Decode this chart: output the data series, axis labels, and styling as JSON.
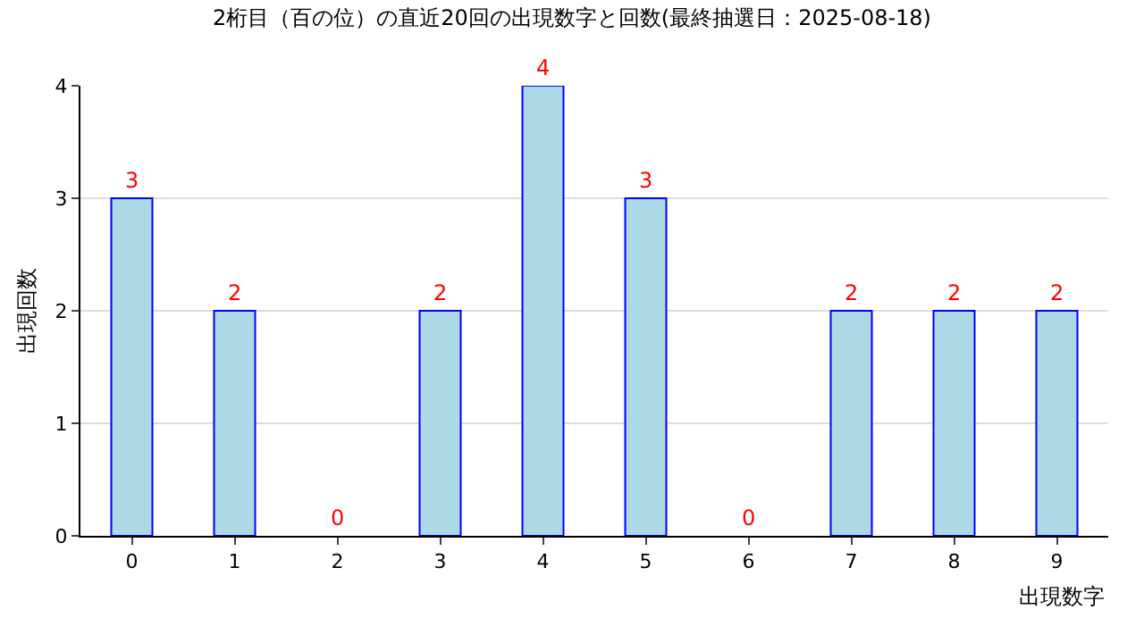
{
  "chart_data": {
    "type": "bar",
    "title": "2桁目（百の位）の直近20回の出現数字と回数(最終抽選日：2025-08-18)",
    "categories": [
      "0",
      "1",
      "2",
      "3",
      "4",
      "5",
      "6",
      "7",
      "8",
      "9"
    ],
    "values": [
      3,
      2,
      0,
      2,
      4,
      3,
      0,
      2,
      2,
      2
    ],
    "color": "#add8e6",
    "xlabel": "出現数字",
    "ylabel": "出現回数",
    "ylim": [
      0,
      4
    ],
    "yticks": [
      0,
      1,
      2,
      3,
      4
    ],
    "grid": "y",
    "data_labels": true,
    "legend": false
  }
}
